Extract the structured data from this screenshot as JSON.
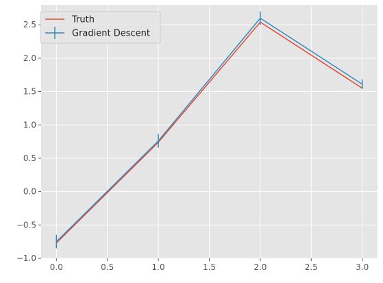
{
  "chart_data": {
    "type": "line",
    "title": "",
    "xlabel": "",
    "ylabel": "",
    "xlim": [
      -0.15,
      3.15
    ],
    "ylim": [
      -1.0,
      2.8
    ],
    "grid": true,
    "legend_position": "top-left",
    "x_ticks": [
      0.0,
      0.5,
      1.0,
      1.5,
      2.0,
      2.5,
      3.0
    ],
    "x_tick_labels": [
      "0.0",
      "0.5",
      "1.0",
      "1.5",
      "2.0",
      "2.5",
      "3.0"
    ],
    "y_ticks": [
      -1.0,
      -0.5,
      0.0,
      0.5,
      1.0,
      1.5,
      2.0,
      2.5
    ],
    "y_tick_labels": [
      "−1.0",
      "−0.5",
      "0.0",
      "0.5",
      "1.0",
      "1.5",
      "2.0",
      "2.5"
    ],
    "series": [
      {
        "name": "Truth",
        "color": "#E24A33",
        "x": [
          0,
          1,
          2,
          3
        ],
        "y": [
          -0.77,
          0.74,
          2.54,
          1.55
        ],
        "error": null
      },
      {
        "name": "Gradient Descent",
        "color": "#348ABD",
        "x": [
          0,
          1,
          2,
          3
        ],
        "y": [
          -0.75,
          0.76,
          2.6,
          1.61
        ],
        "error": [
          0.1,
          0.1,
          0.1,
          0.07
        ]
      }
    ]
  },
  "colors": {
    "axes_background": "#E5E5E5",
    "grid": "#FFFFFF",
    "tick_label": "#555555"
  }
}
